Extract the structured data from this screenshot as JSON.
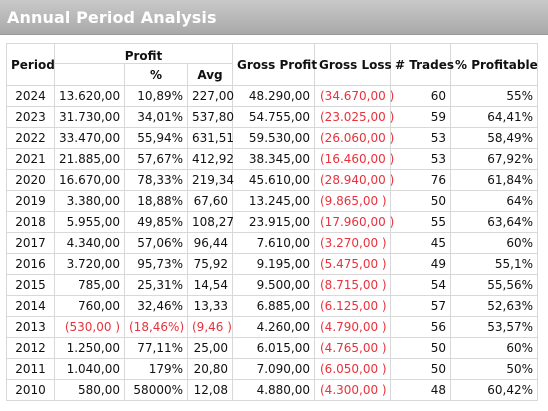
{
  "window": {
    "title": "Annual Period Analysis"
  },
  "table": {
    "headers": {
      "period": "Period",
      "profit": "Profit",
      "profit_pct": "%",
      "profit_avg": "Avg",
      "gross_profit": "Gross Profit",
      "gross_loss": "Gross Loss",
      "trades": "# Trades",
      "pct_profitable": "% Profitable"
    },
    "rows": [
      {
        "period": "2024",
        "profit": "13.620,00",
        "pct": "10,89%",
        "avg": "227,00",
        "gross_profit": "48.290,00",
        "gross_loss": "(34.670,00 )",
        "trades": "60",
        "pct_profitable": "55%",
        "negative": false
      },
      {
        "period": "2023",
        "profit": "31.730,00",
        "pct": "34,01%",
        "avg": "537,80",
        "gross_profit": "54.755,00",
        "gross_loss": "(23.025,00 )",
        "trades": "59",
        "pct_profitable": "64,41%",
        "negative": false
      },
      {
        "period": "2022",
        "profit": "33.470,00",
        "pct": "55,94%",
        "avg": "631,51",
        "gross_profit": "59.530,00",
        "gross_loss": "(26.060,00 )",
        "trades": "53",
        "pct_profitable": "58,49%",
        "negative": false
      },
      {
        "period": "2021",
        "profit": "21.885,00",
        "pct": "57,67%",
        "avg": "412,92",
        "gross_profit": "38.345,00",
        "gross_loss": "(16.460,00 )",
        "trades": "53",
        "pct_profitable": "67,92%",
        "negative": false
      },
      {
        "period": "2020",
        "profit": "16.670,00",
        "pct": "78,33%",
        "avg": "219,34",
        "gross_profit": "45.610,00",
        "gross_loss": "(28.940,00 )",
        "trades": "76",
        "pct_profitable": "61,84%",
        "negative": false
      },
      {
        "period": "2019",
        "profit": "3.380,00",
        "pct": "18,88%",
        "avg": "67,60",
        "gross_profit": "13.245,00",
        "gross_loss": "(9.865,00 )",
        "trades": "50",
        "pct_profitable": "64%",
        "negative": false
      },
      {
        "period": "2018",
        "profit": "5.955,00",
        "pct": "49,85%",
        "avg": "108,27",
        "gross_profit": "23.915,00",
        "gross_loss": "(17.960,00 )",
        "trades": "55",
        "pct_profitable": "63,64%",
        "negative": false
      },
      {
        "period": "2017",
        "profit": "4.340,00",
        "pct": "57,06%",
        "avg": "96,44",
        "gross_profit": "7.610,00",
        "gross_loss": "(3.270,00 )",
        "trades": "45",
        "pct_profitable": "60%",
        "negative": false
      },
      {
        "period": "2016",
        "profit": "3.720,00",
        "pct": "95,73%",
        "avg": "75,92",
        "gross_profit": "9.195,00",
        "gross_loss": "(5.475,00 )",
        "trades": "49",
        "pct_profitable": "55,1%",
        "negative": false
      },
      {
        "period": "2015",
        "profit": "785,00",
        "pct": "25,31%",
        "avg": "14,54",
        "gross_profit": "9.500,00",
        "gross_loss": "(8.715,00 )",
        "trades": "54",
        "pct_profitable": "55,56%",
        "negative": false
      },
      {
        "period": "2014",
        "profit": "760,00",
        "pct": "32,46%",
        "avg": "13,33",
        "gross_profit": "6.885,00",
        "gross_loss": "(6.125,00 )",
        "trades": "57",
        "pct_profitable": "52,63%",
        "negative": false
      },
      {
        "period": "2013",
        "profit": "(530,00 )",
        "pct": "(18,46%)",
        "avg": "(9,46 )",
        "gross_profit": "4.260,00",
        "gross_loss": "(4.790,00 )",
        "trades": "56",
        "pct_profitable": "53,57%",
        "negative": true
      },
      {
        "period": "2012",
        "profit": "1.250,00",
        "pct": "77,11%",
        "avg": "25,00",
        "gross_profit": "6.015,00",
        "gross_loss": "(4.765,00 )",
        "trades": "50",
        "pct_profitable": "60%",
        "negative": false
      },
      {
        "period": "2011",
        "profit": "1.040,00",
        "pct": "179%",
        "avg": "20,80",
        "gross_profit": "7.090,00",
        "gross_loss": "(6.050,00 )",
        "trades": "50",
        "pct_profitable": "50%",
        "negative": false
      },
      {
        "period": "2010",
        "profit": "580,00",
        "pct": "58000%",
        "avg": "12,08",
        "gross_profit": "4.880,00",
        "gross_loss": "(4.300,00 )",
        "trades": "48",
        "pct_profitable": "60,42%",
        "negative": false
      }
    ]
  },
  "colors": {
    "negative": "#e8323c",
    "title_bar": "#b5b5b5",
    "grid": "#d8d8d8"
  }
}
